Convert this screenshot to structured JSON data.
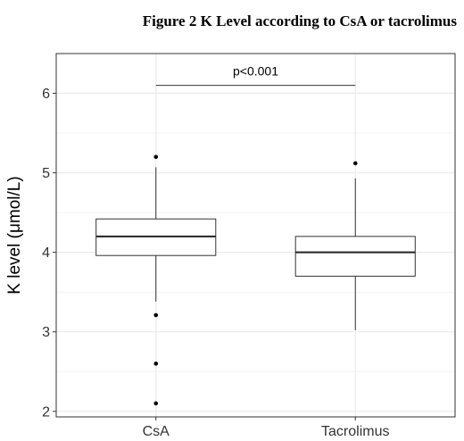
{
  "figure_title": "Figure 2  K Level according to CsA or tacrolimus",
  "chart_data": {
    "type": "box",
    "title": "Figure 2  K Level according to CsA or tacrolimus",
    "xlabel": "",
    "ylabel": "K level (μmol/L)",
    "ylim": [
      1.93,
      6.5
    ],
    "yticks": [
      2,
      3,
      4,
      5,
      6
    ],
    "categories": [
      "CsA",
      "Tacrolimus"
    ],
    "boxes": [
      {
        "category": "CsA",
        "whisker_low": 3.38,
        "q1": 3.96,
        "median": 4.2,
        "q3": 4.42,
        "whisker_high": 5.07,
        "outliers": [
          5.2,
          3.21,
          2.6,
          2.1
        ]
      },
      {
        "category": "Tacrolimus",
        "whisker_low": 3.02,
        "q1": 3.7,
        "median": 4.0,
        "q3": 4.2,
        "whisker_high": 4.93,
        "outliers": [
          5.12
        ]
      }
    ],
    "annotation": {
      "text": "p<0.001",
      "y": 6.1
    },
    "grid": true,
    "colors": {
      "box_fill": "#ffffff",
      "box_stroke": "#333333",
      "grid": "#ebebeb",
      "panel_border": "#333333"
    }
  }
}
